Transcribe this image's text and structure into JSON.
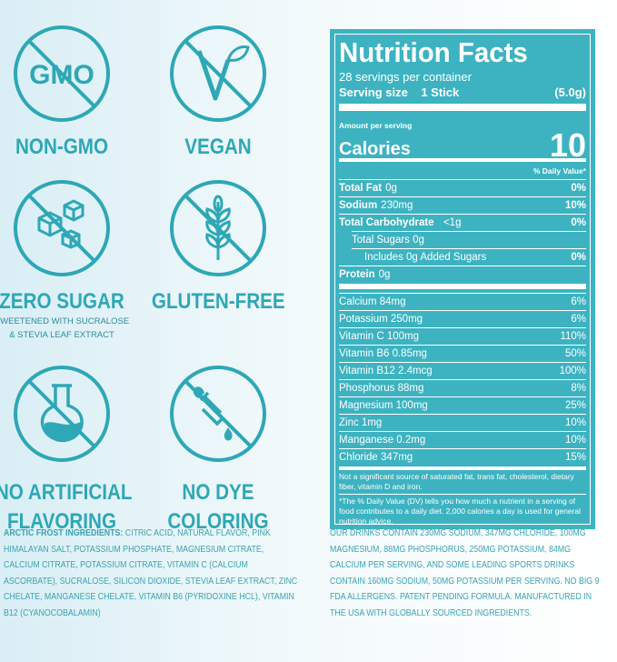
{
  "badges": [
    {
      "icon_text": "GMO",
      "label": "NON-GMO"
    },
    {
      "label": "VEGAN"
    },
    {
      "label": "ZERO SUGAR",
      "sub": [
        "SWEETENED WITH SUCRALOSE",
        "& STEVIA LEAF EXTRACT"
      ]
    },
    {
      "label": "GLUTEN-FREE"
    },
    {
      "label": [
        "NO ARTIFICIAL",
        "FLAVORING"
      ]
    },
    {
      "label": [
        "NO DYE",
        "COLORING"
      ]
    }
  ],
  "nutrition": {
    "title": "Nutrition Facts",
    "servings": "28 servings per container",
    "serving_size_label": "Serving size",
    "serving_size_value": "1 Stick",
    "serving_size_weight": "(5.0g)",
    "amount_per_serving": "Amount per serving",
    "calories_label": "Calories",
    "calories_value": "10",
    "daily_value_header": "% Daily Value*",
    "nutrients": [
      {
        "name": "Total Fat",
        "amount": "0g",
        "dv": "0%"
      },
      {
        "name": "Sodium",
        "amount": "230mg",
        "dv": "10%"
      },
      {
        "name": "Total Carbohydrate",
        "amount": "<1g",
        "dv": "0%"
      },
      {
        "name": "Total Sugars 0g"
      },
      {
        "name": "Includes 0g Added Sugars",
        "dv": "0%"
      },
      {
        "name": "Protein",
        "amount": "0g"
      }
    ],
    "minerals": [
      {
        "name": "Calcium 84mg",
        "dv": "6%"
      },
      {
        "name": "Potassium 250mg",
        "dv": "6%"
      },
      {
        "name": "Vitamin C 100mg",
        "dv": "110%"
      },
      {
        "name": "Vitamin B6 0.85mg",
        "dv": "50%"
      },
      {
        "name": "Vitamin B12 2.4mcg",
        "dv": "100%"
      },
      {
        "name": "Phosphorus 88mg",
        "dv": "8%"
      },
      {
        "name": "Magnesium 100mg",
        "dv": "25%"
      },
      {
        "name": "Zinc 1mg",
        "dv": "10%"
      },
      {
        "name": "Manganese 0.2mg",
        "dv": "10%"
      },
      {
        "name": "Chloride 347mg",
        "dv": "15%"
      }
    ],
    "footnote_1": "Not a significant source of saturated fat, trans fat, cholesterol, dietary fiber, vitamin D and iron.",
    "footnote_2": "*The % Daily Value (DV) tells you how much a nutrient in a serving of food contributes to a daily diet. 2,000 calories a day is used for general nutrition advice."
  },
  "ingredients": {
    "label": "ARCTIC FROST INGREDIENTS:",
    "text": "CITRIC ACID, NATURAL FLAVOR, PINK HIMALAYAN SALT, POTASSIUM PHOSPHATE, MAGNESIUM CITRATE, CALCIUM CITRATE, POTASSIUM CITRATE, VITAMIN C (CALCIUM ASCORBATE), SUCRALOSE, SILICON DIOXIDE, STEVIA LEAF EXTRACT, ZINC CHELATE, MANGANESE CHELATE, VITAMIN B6 (PYRIDOXINE HCL), VITAMIN B12 (CYANOCOBALAMIN)"
  },
  "note": "OUR DRINKS CONTAIN 230MG SODIUM, 347MG CHLORIDE, 100MG MAGNESIUM, 88MG PHOSPHORUS, 250MG POTASSIUM, 84MG CALCIUM PER SERVING, AND SOME LEADING SPORTS DRINKS CONTAIN 160MG SODIUM, 50MG POTASSIUM PER SERVING. NO BIG 9 FDA ALLERGENS. PATENT PENDING FORMULA. MANUFACTURED IN THE USA WITH GLOBALLY SOURCED INGREDIENTS."
}
